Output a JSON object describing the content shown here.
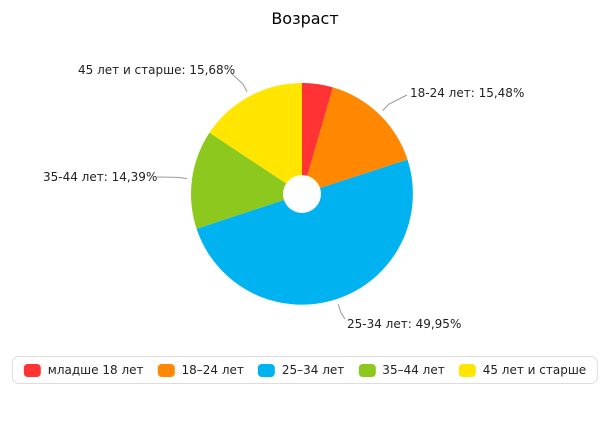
{
  "chart_data": {
    "type": "pie",
    "title": "Возраст",
    "donut": true,
    "hole_radius_ratio": 0.17,
    "start_angle_deg": 0,
    "direction": "clockwise",
    "slices": [
      {
        "label": "младше 18 лет",
        "value": 4.5,
        "color": "#ff3333",
        "callout": ""
      },
      {
        "label": "18-24 лет",
        "value": 15.48,
        "color": "#ff8800",
        "callout": "18-24 лет: 15,48%"
      },
      {
        "label": "25-34 лет",
        "value": 49.95,
        "color": "#00b2f0",
        "callout": "25-34 лет: 49,95%"
      },
      {
        "label": "35-44 лет",
        "value": 14.39,
        "color": "#8cc81e",
        "callout": "35-44 лет: 14,39%"
      },
      {
        "label": "45 лет и старше",
        "value": 15.68,
        "color": "#ffe500",
        "callout": "45 лет и старше: 15,68%"
      }
    ],
    "legend": [
      {
        "label": "младше 18 лет"
      },
      {
        "label": "18–24 лет"
      },
      {
        "label": "25–34 лет"
      },
      {
        "label": "35–44 лет"
      },
      {
        "label": "45 лет и старше"
      }
    ],
    "legend_position": "bottom",
    "connector_color": "#999999",
    "background_color": "#ffffff"
  }
}
